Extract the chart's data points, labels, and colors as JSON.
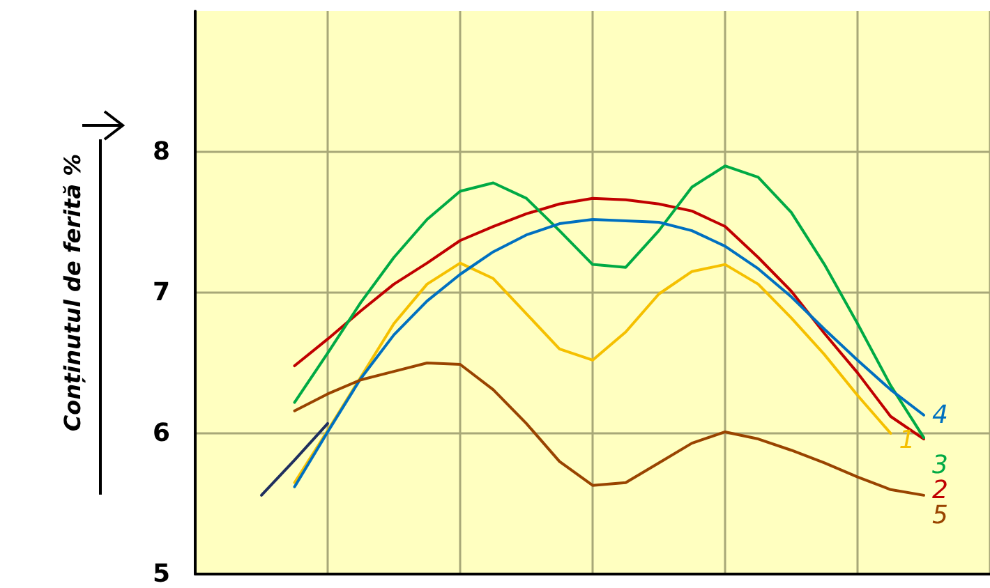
{
  "chart_data": {
    "type": "line",
    "ylabel": "Conținutul de ferită %",
    "categories": [
      null,
      null,
      null,
      null,
      null,
      null,
      null,
      null,
      null,
      null,
      null,
      null,
      null,
      null,
      null,
      null,
      null,
      null,
      null,
      null,
      null,
      null,
      null,
      null,
      null
    ],
    "ylim": [
      5,
      9
    ],
    "yticks": [
      5,
      6,
      7,
      8
    ],
    "tick_labels": "y",
    "grid": true,
    "marker": "none",
    "line_style": "solid",
    "series": [
      {
        "name": "1",
        "color": "#f5c000",
        "values": [
          null,
          null,
          null,
          5.65,
          6.02,
          6.4,
          6.78,
          7.06,
          7.21,
          7.1,
          6.85,
          6.6,
          6.52,
          6.72,
          6.99,
          7.15,
          7.2,
          7.06,
          6.82,
          6.56,
          6.27,
          6.0,
          null,
          null,
          null
        ]
      },
      {
        "name": "2",
        "color": "#c00000",
        "values": [
          null,
          null,
          null,
          6.48,
          6.67,
          6.87,
          7.06,
          7.21,
          7.37,
          7.47,
          7.56,
          7.63,
          7.67,
          7.66,
          7.63,
          7.58,
          7.47,
          7.25,
          7.01,
          6.71,
          6.43,
          6.12,
          5.96,
          null,
          null
        ]
      },
      {
        "name": "3",
        "color": "#00aa44",
        "values": [
          null,
          null,
          null,
          6.22,
          6.57,
          6.93,
          7.25,
          7.52,
          7.72,
          7.78,
          7.67,
          7.44,
          7.2,
          7.18,
          7.44,
          7.75,
          7.9,
          7.82,
          7.57,
          7.2,
          6.78,
          6.34,
          5.97,
          null,
          null
        ]
      },
      {
        "name": "4",
        "color": "#0070c0",
        "values": [
          null,
          null,
          null,
          5.62,
          6.01,
          6.39,
          6.7,
          6.94,
          7.13,
          7.29,
          7.41,
          7.49,
          7.52,
          7.51,
          7.5,
          7.44,
          7.33,
          7.17,
          6.97,
          6.74,
          6.52,
          6.31,
          6.13,
          null,
          null
        ]
      },
      {
        "name": "5",
        "color": "#994400",
        "values": [
          null,
          null,
          null,
          6.16,
          6.28,
          6.38,
          6.44,
          6.5,
          6.49,
          6.31,
          6.07,
          5.8,
          5.63,
          5.65,
          5.79,
          5.93,
          6.01,
          5.96,
          5.88,
          5.79,
          5.69,
          5.6,
          5.56,
          null,
          null
        ]
      },
      {
        "color": "#1f2f5f",
        "values": [
          null,
          null,
          5.56,
          5.81,
          6.07,
          null,
          null,
          null,
          null,
          null,
          null,
          null,
          null,
          null,
          null,
          null,
          null,
          null,
          null,
          null,
          null,
          null,
          null,
          null,
          null
        ]
      }
    ]
  }
}
